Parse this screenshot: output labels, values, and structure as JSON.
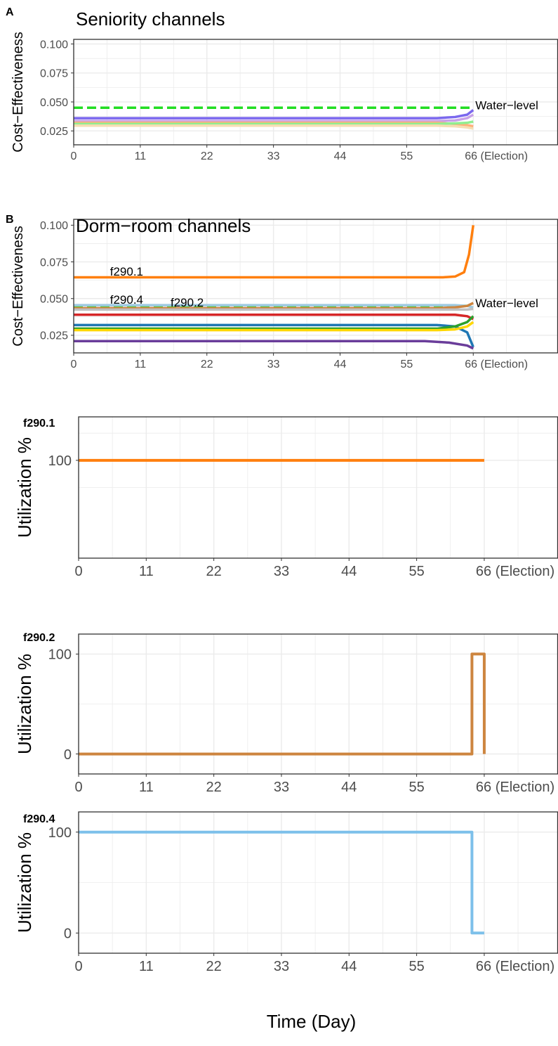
{
  "panels_meta": {
    "water_label": "Water−level",
    "colors": {
      "water": "#22dd22",
      "grid": "#ebebeb",
      "border": "#333333",
      "tick_text": "#4d4d4d"
    }
  },
  "chart_data": [
    {
      "type": "line",
      "tag": "A",
      "title": "Seniority channels",
      "xlabel": "",
      "ylabel": "Cost−Effectiveness",
      "xlim": [
        0,
        80
      ],
      "ylim": [
        0.013,
        0.104
      ],
      "x_ticks": [
        0,
        11,
        22,
        33,
        44,
        55,
        66
      ],
      "x_tick_labels": [
        "0",
        "11",
        "22",
        "33",
        "44",
        "55",
        "66 (Election)"
      ],
      "y_ticks": [
        0.025,
        0.05,
        0.075,
        0.1
      ],
      "y_tick_labels": [
        "0.025",
        "0.050",
        "0.075",
        "0.100"
      ],
      "grid": true,
      "water_level": 0.045,
      "series": [
        {
          "color": "#7b68ee",
          "x": [
            0,
            60,
            63,
            65,
            66
          ],
          "y": [
            0.036,
            0.036,
            0.037,
            0.039,
            0.043
          ]
        },
        {
          "color": "#c8a2e8",
          "x": [
            0,
            60,
            63,
            65,
            66
          ],
          "y": [
            0.0335,
            0.0335,
            0.034,
            0.036,
            0.039
          ]
        },
        {
          "color": "#ffb07a",
          "x": [
            0,
            60,
            63,
            65,
            66
          ],
          "y": [
            0.032,
            0.032,
            0.031,
            0.03,
            0.029
          ]
        },
        {
          "color": "#90ee90",
          "x": [
            0,
            60,
            63,
            65,
            66
          ],
          "y": [
            0.031,
            0.031,
            0.0315,
            0.032,
            0.033
          ]
        },
        {
          "color": "#f5deb3",
          "x": [
            0,
            60,
            63,
            65,
            66
          ],
          "y": [
            0.0295,
            0.0295,
            0.029,
            0.028,
            0.027
          ]
        }
      ],
      "annotations": []
    },
    {
      "type": "line",
      "tag": "B",
      "title": "Dorm−room channels",
      "xlabel": "",
      "ylabel": "Cost−Effectiveness",
      "xlim": [
        0,
        80
      ],
      "ylim": [
        0.013,
        0.104
      ],
      "x_ticks": [
        0,
        11,
        22,
        33,
        44,
        55,
        66
      ],
      "x_tick_labels": [
        "0",
        "11",
        "22",
        "33",
        "44",
        "55",
        "66 (Election)"
      ],
      "y_ticks": [
        0.025,
        0.05,
        0.075,
        0.1
      ],
      "y_tick_labels": [
        "0.025",
        "0.050",
        "0.075",
        "0.100"
      ],
      "grid": true,
      "water_level": 0.045,
      "series": [
        {
          "color": "#ff7f0e",
          "x": [
            0,
            61,
            63,
            64.5,
            65.3,
            66
          ],
          "y": [
            0.0645,
            0.0645,
            0.065,
            0.068,
            0.08,
            0.1
          ]
        },
        {
          "color": "#9ecae1",
          "x": [
            0,
            60,
            63,
            65,
            66
          ],
          "y": [
            0.0455,
            0.0455,
            0.0455,
            0.045,
            0.044
          ]
        },
        {
          "color": "#cd853f",
          "x": [
            0,
            60,
            63,
            65,
            66
          ],
          "y": [
            0.0435,
            0.0435,
            0.044,
            0.045,
            0.047
          ]
        },
        {
          "color": "#c0c0c0",
          "x": [
            0,
            60,
            63,
            65,
            66
          ],
          "y": [
            0.0425,
            0.0425,
            0.0425,
            0.0425,
            0.043
          ]
        },
        {
          "color": "#d62728",
          "x": [
            0,
            60,
            63,
            65,
            66
          ],
          "y": [
            0.039,
            0.039,
            0.039,
            0.038,
            0.036
          ]
        },
        {
          "color": "#1f77b4",
          "x": [
            0,
            60,
            63,
            65,
            66
          ],
          "y": [
            0.032,
            0.032,
            0.031,
            0.027,
            0.017
          ]
        },
        {
          "color": "#2ca02c",
          "x": [
            0,
            60,
            63,
            65,
            66
          ],
          "y": [
            0.0295,
            0.0295,
            0.031,
            0.034,
            0.038
          ]
        },
        {
          "color": "#ffd700",
          "x": [
            0,
            60,
            63,
            65,
            66
          ],
          "y": [
            0.0285,
            0.0285,
            0.029,
            0.031,
            0.034
          ]
        },
        {
          "color": "#6a3d9a",
          "x": [
            0,
            58,
            62,
            65,
            66
          ],
          "y": [
            0.021,
            0.021,
            0.02,
            0.018,
            0.016
          ]
        }
      ],
      "annotations": [
        {
          "text": "f290.1",
          "x": 6,
          "y": 0.0675,
          "color": "#ff7f0e"
        },
        {
          "text": "f290.4",
          "x": 6,
          "y": 0.0485,
          "color": "#9ecae1"
        },
        {
          "text": "f290.2",
          "x": 16,
          "y": 0.0465,
          "color": "#cd853f"
        }
      ]
    },
    {
      "type": "line",
      "tag": "f290.1",
      "title": "",
      "xlabel": "",
      "ylabel": "Utilization %",
      "xlim": [
        0,
        78
      ],
      "ylim": [
        -80,
        180
      ],
      "x_ticks": [
        0,
        11,
        22,
        33,
        44,
        55,
        66
      ],
      "x_tick_labels": [
        "0",
        "11",
        "22",
        "33",
        "44",
        "55",
        "66 (Election)"
      ],
      "y_ticks": [
        100
      ],
      "y_tick_labels": [
        "100"
      ],
      "grid": true,
      "series": [
        {
          "color": "#ff7f0e",
          "x": [
            0,
            66
          ],
          "y": [
            100,
            100
          ]
        }
      ]
    },
    {
      "type": "line",
      "tag": "f290.2",
      "title": "",
      "xlabel": "",
      "ylabel": "Utilization %",
      "xlim": [
        0,
        78
      ],
      "ylim": [
        -20,
        120
      ],
      "x_ticks": [
        0,
        11,
        22,
        33,
        44,
        55,
        66
      ],
      "x_tick_labels": [
        "0",
        "11",
        "22",
        "33",
        "44",
        "55",
        "66 (Election)"
      ],
      "y_ticks": [
        0,
        100
      ],
      "y_tick_labels": [
        "0",
        "100"
      ],
      "grid": true,
      "series": [
        {
          "color": "#cd853f",
          "x": [
            0,
            64,
            64,
            66,
            66
          ],
          "y": [
            0,
            0,
            100,
            100,
            0
          ]
        }
      ]
    },
    {
      "type": "line",
      "tag": "f290.4",
      "title": "",
      "xlabel": "Time (Day)",
      "ylabel": "Utilization %",
      "xlim": [
        0,
        78
      ],
      "ylim": [
        -20,
        120
      ],
      "x_ticks": [
        0,
        11,
        22,
        33,
        44,
        55,
        66
      ],
      "x_tick_labels": [
        "0",
        "11",
        "22",
        "33",
        "44",
        "55",
        "66 (Election)"
      ],
      "y_ticks": [
        0,
        100
      ],
      "y_tick_labels": [
        "0",
        "100"
      ],
      "grid": true,
      "series": [
        {
          "color": "#7dc0ea",
          "x": [
            0,
            64,
            64,
            66
          ],
          "y": [
            100,
            100,
            0,
            0
          ]
        }
      ]
    }
  ]
}
